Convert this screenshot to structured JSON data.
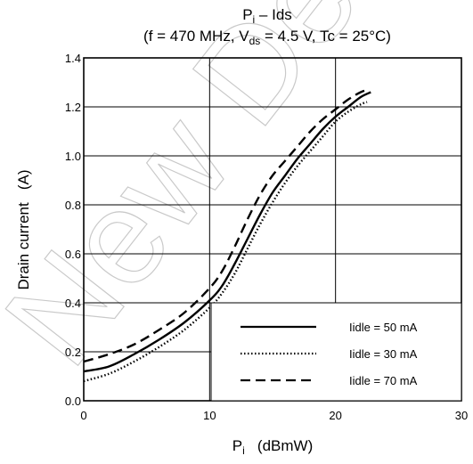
{
  "watermark": "New Design",
  "chart_data": {
    "type": "line",
    "title": {
      "line1_main": "P",
      "line1_sub": "i",
      "line1_rest": " – Ids",
      "line2_a": "(f = 470 MHz, V",
      "line2_sub": "ds",
      "line2_b": " = 4.5 V, Tc = 25°C)"
    },
    "xlabel": {
      "main": "P",
      "sub": "i",
      "rest": "   (dBmW)"
    },
    "ylabel": "Drain current   (A)",
    "xlim": [
      0,
      30
    ],
    "ylim": [
      0,
      1.4
    ],
    "x_ticks": [
      0,
      10,
      20,
      30
    ],
    "y_ticks": [
      0.0,
      0.2,
      0.4,
      0.6,
      0.8,
      1.0,
      1.2,
      1.4
    ],
    "x_tick_labels": [
      "0",
      "10",
      "20",
      "30"
    ],
    "y_tick_labels": [
      "0.0",
      "0.2",
      "0.4",
      "0.6",
      "0.8",
      "1.0",
      "1.2",
      "1.4"
    ],
    "grid": true,
    "legend_position": "bottom-right",
    "series": [
      {
        "name": "Iidle = 50 mA",
        "style": "solid",
        "x": [
          0,
          2,
          4,
          6,
          8,
          10,
          11,
          12,
          13,
          14,
          15,
          16,
          17,
          18,
          19,
          20,
          21,
          22,
          22.8
        ],
        "y": [
          0.12,
          0.14,
          0.19,
          0.25,
          0.32,
          0.41,
          0.47,
          0.56,
          0.66,
          0.76,
          0.85,
          0.92,
          0.99,
          1.05,
          1.11,
          1.16,
          1.2,
          1.24,
          1.26
        ]
      },
      {
        "name": "Iidle = 30 mA",
        "style": "dotted",
        "x": [
          0,
          2,
          4,
          6,
          8,
          10,
          11,
          12,
          13,
          14,
          15,
          16,
          17,
          18,
          19,
          20,
          21,
          22,
          22.5
        ],
        "y": [
          0.08,
          0.11,
          0.16,
          0.22,
          0.29,
          0.38,
          0.44,
          0.52,
          0.62,
          0.72,
          0.81,
          0.89,
          0.96,
          1.02,
          1.08,
          1.14,
          1.18,
          1.21,
          1.22
        ]
      },
      {
        "name": "Iidle = 70 mA",
        "style": "dashed",
        "x": [
          0,
          2,
          4,
          6,
          8,
          10,
          11,
          12,
          13,
          14,
          15,
          16,
          17,
          18,
          19,
          20,
          21,
          22,
          22.6
        ],
        "y": [
          0.16,
          0.19,
          0.23,
          0.29,
          0.36,
          0.46,
          0.53,
          0.63,
          0.74,
          0.84,
          0.92,
          0.98,
          1.04,
          1.1,
          1.15,
          1.19,
          1.23,
          1.26,
          1.27
        ]
      }
    ]
  }
}
